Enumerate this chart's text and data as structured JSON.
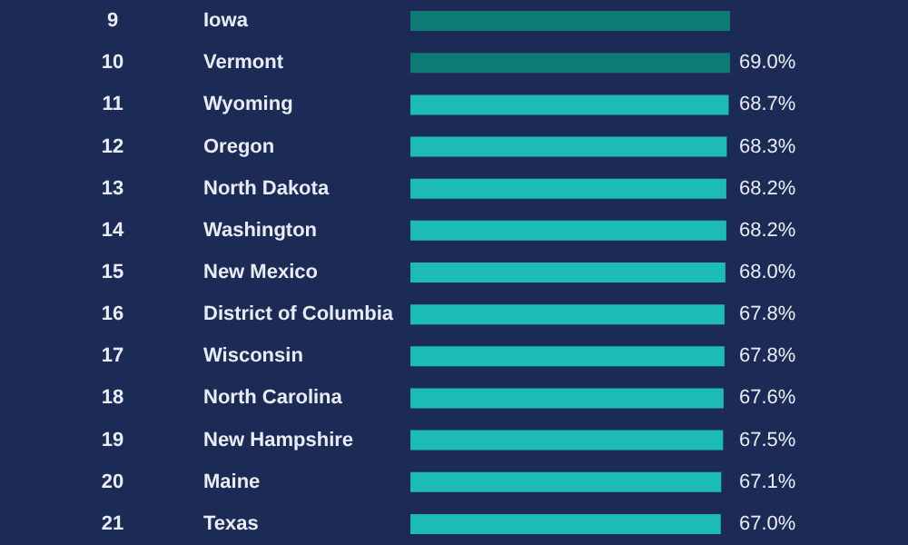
{
  "chart_data": {
    "type": "bar",
    "orientation": "horizontal",
    "categories": [
      "Iowa",
      "Vermont",
      "Wyoming",
      "Oregon",
      "North Dakota",
      "Washington",
      "New Mexico",
      "District of Columbia",
      "Wisconsin",
      "North Carolina",
      "New Hampshire",
      "Maine",
      "Texas"
    ],
    "values": [
      69.0,
      69.0,
      68.7,
      68.3,
      68.2,
      68.2,
      68.0,
      67.8,
      67.8,
      67.6,
      67.5,
      67.1,
      67.0
    ],
    "colors": [
      "#0e7a74",
      "#0e7a74",
      "#1cbcb4",
      "#1cbcb4",
      "#1cbcb4",
      "#1cbcb4",
      "#1cbcb4",
      "#1cbcb4",
      "#1cbcb4",
      "#1cbcb4",
      "#1cbcb4",
      "#1cbcb4",
      "#1cbcb4"
    ],
    "value_labels": [
      null,
      "69.0%",
      "68.7%",
      "68.3%",
      "68.2%",
      "68.2%",
      "68.0%",
      "67.8%",
      "67.8%",
      "67.6%",
      "67.5%",
      "67.1%",
      "67.0%"
    ],
    "annotations": [
      "9",
      "10",
      "11",
      "12",
      "13",
      "14",
      "15",
      "16",
      "17",
      "18",
      "19",
      "20",
      "21"
    ]
  }
}
